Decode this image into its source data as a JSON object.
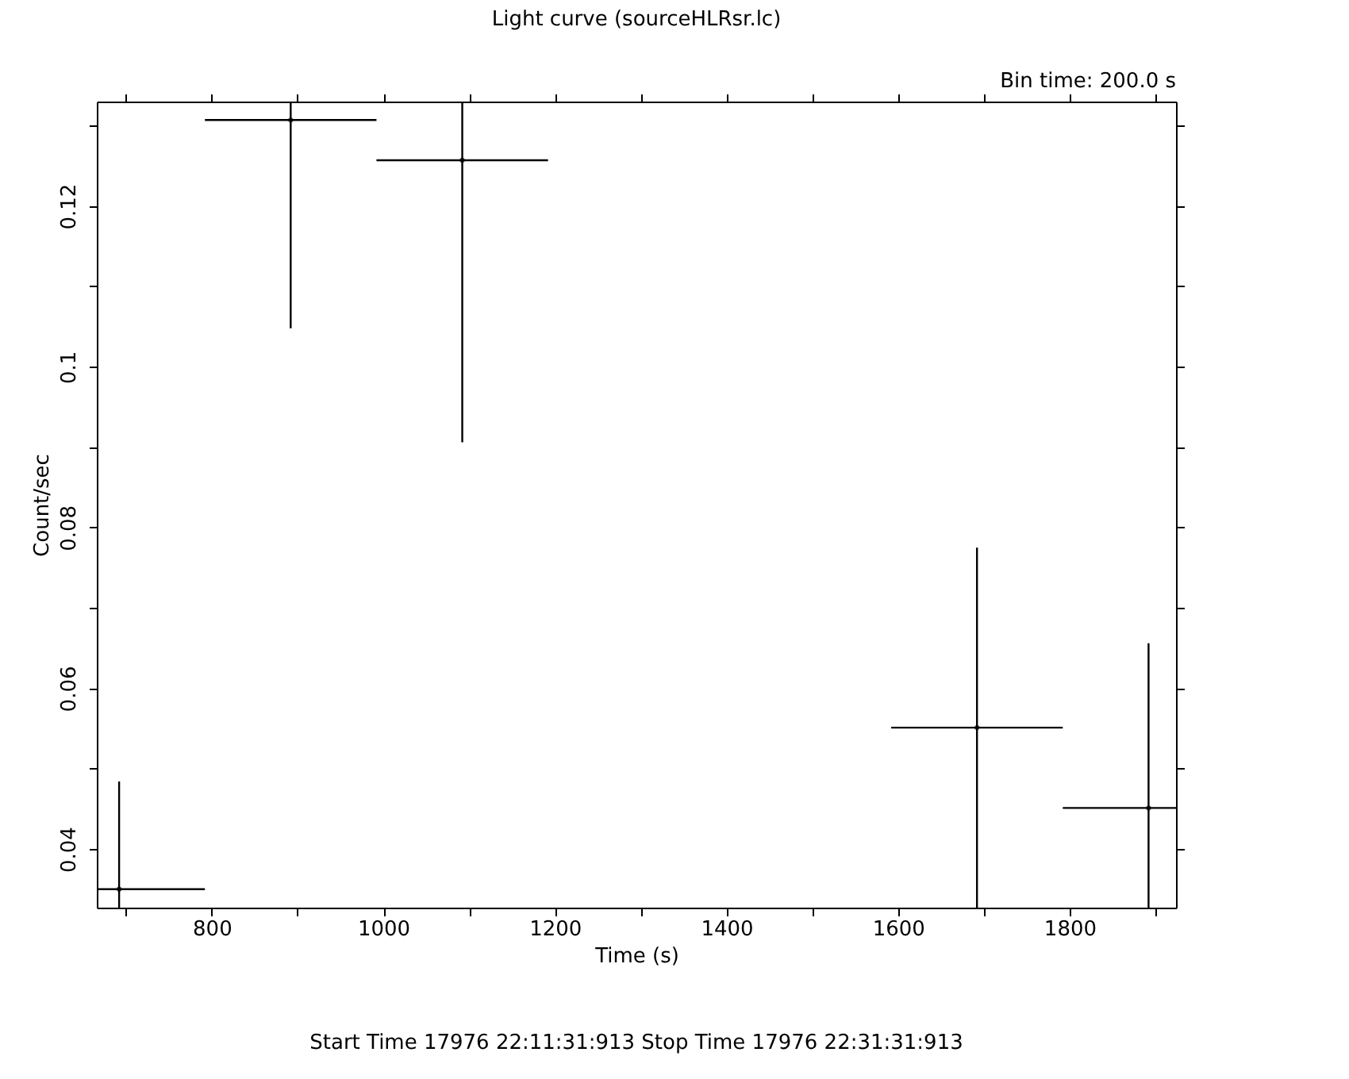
{
  "chart_data": {
    "type": "scatter",
    "title": "Light curve (sourceHLRsr.lc)",
    "xlabel": "Time (s)",
    "ylabel": "Count/sec",
    "annotations": [
      "Bin time:    200.0     s",
      "Start Time 17976 22:11:31:913    Stop Time 17976 22:31:31:913"
    ],
    "x": [
      692,
      892,
      1092,
      1692,
      1892
    ],
    "series": [
      {
        "color": "#000000",
        "values": [
          0.035,
          0.1307,
          0.1257,
          0.0551,
          0.0451
        ],
        "errors": [
          [
            0.0327,
            0.0484
          ],
          [
            0.1048,
            0.133
          ],
          [
            0.0906,
            0.133
          ],
          0.0224,
          [
            0.0327,
            0.0656
          ]
        ],
        "xerrors": [
          [
            666,
            792
          ],
          100,
          100,
          100,
          [
            1792,
            1924
          ]
        ]
      }
    ],
    "marker": "none",
    "xlim": [
      666,
      1924
    ],
    "xticks": [
      {
        "value": 700,
        "label": null
      },
      800,
      {
        "value": 900,
        "label": null
      },
      1000,
      {
        "value": 1100,
        "label": null
      },
      1200,
      {
        "value": 1300,
        "label": null
      },
      1400,
      {
        "value": 1500,
        "label": null
      },
      1600,
      {
        "value": 1700,
        "label": null
      },
      1800,
      {
        "value": 1900,
        "label": null
      }
    ],
    "ylim": [
      0.0327,
      0.133
    ],
    "yticks": [
      0.04,
      {
        "value": 0.05,
        "label": null
      },
      0.06,
      {
        "value": 0.07,
        "label": null
      },
      0.08,
      {
        "value": 0.09,
        "label": null
      },
      0.1,
      {
        "value": 0.11,
        "label": null
      },
      0.12,
      {
        "value": 0.13,
        "label": null
      }
    ]
  }
}
